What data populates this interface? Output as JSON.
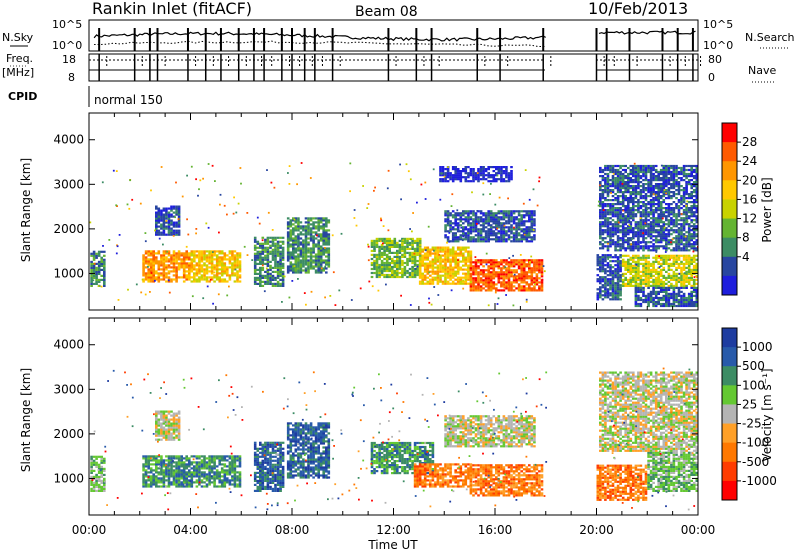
{
  "header": {
    "station": "Rankin Inlet (fitACF)",
    "beam": "Beam 08",
    "date": "10/Feb/2013"
  },
  "summary_panels": {
    "nsky_label": "N.Sky",
    "nsky_ticks": [
      "10^5",
      "10^0"
    ],
    "nsearch_label": "N.Search",
    "nsearch_ticks": [
      "10^5",
      "10^0"
    ],
    "freq_label_top": "Freq.",
    "freq_label_bottom": "[MHz]",
    "freq_ticks": [
      "18",
      "8"
    ],
    "nave_label": "Nave",
    "nave_ticks": [
      "80",
      "0"
    ],
    "cpid_label": "CPID",
    "cpid_value": "normal 150"
  },
  "x_axis": {
    "label": "Time UT",
    "ticks": [
      "00:00",
      "04:00",
      "08:00",
      "12:00",
      "16:00",
      "20:00",
      "00:00"
    ]
  },
  "power_scale": {
    "label": "Power [dB]",
    "ticks": [
      "28",
      "24",
      "20",
      "16",
      "12",
      "8",
      "4"
    ],
    "colors": [
      "#ff0000",
      "#ff5a00",
      "#ff9600",
      "#ffc800",
      "#c8d200",
      "#64b432",
      "#3c8c64",
      "#2846a0",
      "#1e1edc"
    ]
  },
  "velocity_scale": {
    "label": "Velocity [m s⁻¹]",
    "ticks": [
      "1000",
      "500",
      "100",
      "25",
      "-25",
      "-100",
      "-500",
      "-1000"
    ],
    "colors": [
      "#1e3ca0",
      "#285aaa",
      "#3c8c64",
      "#64c832",
      "#b4b4b4",
      "#ffa028",
      "#ff7800",
      "#ff3c00",
      "#ff0000"
    ]
  },
  "chart_data": [
    {
      "type": "heatmap",
      "name": "power",
      "ylabel": "Slant Range [km]",
      "yticks": [
        "4000",
        "3000",
        "2000",
        "1000"
      ],
      "ylim": [
        180,
        4600
      ],
      "xlim_hours": [
        0,
        24
      ],
      "patches": [
        {
          "t0": 0.05,
          "t1": 0.6,
          "r0": 700,
          "r1": 1500,
          "p": 6
        },
        {
          "t0": 2.1,
          "t1": 4.0,
          "r0": 800,
          "r1": 1500,
          "p": 2
        },
        {
          "t0": 4.0,
          "t1": 5.9,
          "r0": 800,
          "r1": 1500,
          "p": 3
        },
        {
          "t0": 2.6,
          "t1": 3.6,
          "r0": 1850,
          "r1": 2500,
          "p": 7
        },
        {
          "t0": 6.5,
          "t1": 7.6,
          "r0": 700,
          "r1": 1800,
          "p": 6
        },
        {
          "t0": 7.8,
          "t1": 9.4,
          "r0": 1000,
          "r1": 2250,
          "p": 6
        },
        {
          "t0": 11.1,
          "t1": 13.0,
          "r0": 900,
          "r1": 1800,
          "p": 5
        },
        {
          "t0": 13.0,
          "t1": 15.0,
          "r0": 750,
          "r1": 1600,
          "p": 3
        },
        {
          "t0": 15.0,
          "t1": 17.9,
          "r0": 600,
          "r1": 1300,
          "p": 1
        },
        {
          "t0": 14.0,
          "t1": 17.6,
          "r0": 1700,
          "r1": 2400,
          "p": 7
        },
        {
          "t0": 13.8,
          "t1": 16.7,
          "r0": 3050,
          "r1": 3400,
          "p": 8
        },
        {
          "t0": 20.0,
          "t1": 21.0,
          "r0": 400,
          "r1": 1400,
          "p": 7
        },
        {
          "t0": 21.0,
          "t1": 24.0,
          "r0": 700,
          "r1": 1400,
          "p": 4
        },
        {
          "t0": 21.5,
          "t1": 24.0,
          "r0": 250,
          "r1": 700,
          "p": 7
        },
        {
          "t0": 20.1,
          "t1": 24.0,
          "r0": 1500,
          "r1": 3400,
          "p": 7
        }
      ]
    },
    {
      "type": "heatmap",
      "name": "velocity",
      "ylabel": "Slant Range [km]",
      "yticks": [
        "4000",
        "3000",
        "2000",
        "1000"
      ],
      "ylim": [
        180,
        4600
      ],
      "xlim_hours": [
        0,
        24
      ],
      "patches": [
        {
          "t0": 0.05,
          "t1": 0.6,
          "r0": 700,
          "r1": 1500,
          "v": 3
        },
        {
          "t0": 2.1,
          "t1": 5.9,
          "r0": 800,
          "r1": 1500,
          "v": 2
        },
        {
          "t0": 2.6,
          "t1": 3.6,
          "r0": 1850,
          "r1": 2500,
          "v": 4
        },
        {
          "t0": 6.5,
          "t1": 7.6,
          "r0": 700,
          "r1": 1800,
          "v": 1
        },
        {
          "t0": 7.8,
          "t1": 9.4,
          "r0": 1000,
          "r1": 2250,
          "v": 1
        },
        {
          "t0": 11.1,
          "t1": 13.5,
          "r0": 1100,
          "r1": 1800,
          "v": 2
        },
        {
          "t0": 12.8,
          "t1": 15.0,
          "r0": 800,
          "r1": 1300,
          "v": 6
        },
        {
          "t0": 15.0,
          "t1": 17.9,
          "r0": 600,
          "r1": 1300,
          "v": 6
        },
        {
          "t0": 14.0,
          "t1": 17.6,
          "r0": 1700,
          "r1": 2400,
          "v": 4
        },
        {
          "t0": 20.0,
          "t1": 22.0,
          "r0": 500,
          "r1": 1300,
          "v": 6
        },
        {
          "t0": 22.0,
          "t1": 24.0,
          "r0": 700,
          "r1": 1600,
          "v": 3
        },
        {
          "t0": 20.1,
          "t1": 24.0,
          "r0": 1600,
          "r1": 3400,
          "v": 4
        }
      ]
    }
  ]
}
